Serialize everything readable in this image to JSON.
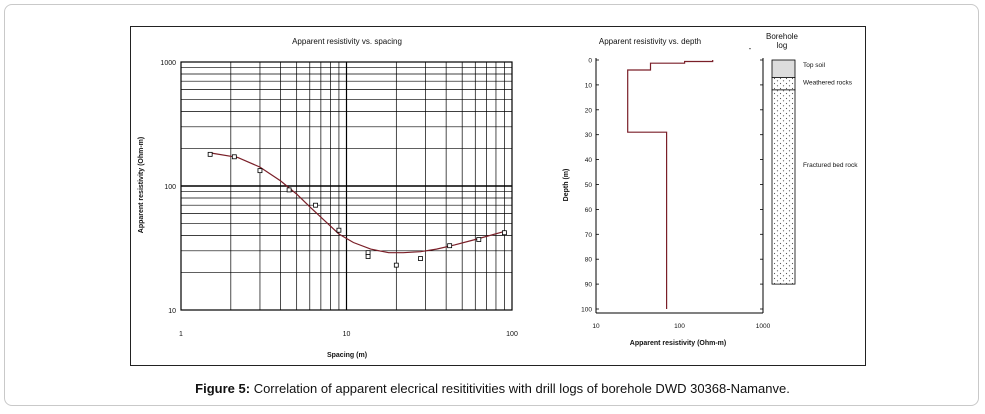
{
  "caption": {
    "label": "Figure 5:",
    "text": "Correlation of apparent elecrical resititivities with drill logs of borehole  DWD 30368-Namanve."
  },
  "chart_data": [
    {
      "type": "scatter",
      "title": "Apparent resistivity vs. spacing",
      "xlabel": "Spacing (m)",
      "ylabel": "Apparent resistivity (Ohm-m)",
      "xscale": "log",
      "yscale": "log",
      "xlim": [
        1,
        100
      ],
      "ylim": [
        10,
        1000
      ],
      "xticks": [
        "1",
        "10",
        "100"
      ],
      "yticks": [
        "10",
        "100",
        "1000"
      ],
      "grid": true,
      "series": [
        {
          "kind": "points",
          "x": [
            1.5,
            2.1,
            3.0,
            4.5,
            6.5,
            9.0,
            13.5,
            13.5,
            20,
            28,
            42,
            63,
            90
          ],
          "y": [
            180,
            172,
            133,
            93,
            70,
            44,
            29,
            27,
            23,
            26,
            33,
            37,
            42
          ]
        },
        {
          "kind": "line",
          "color": "#7a1f28",
          "x": [
            1.5,
            2.2,
            3.0,
            4.0,
            5.0,
            6.0,
            7.0,
            9.0,
            11,
            14,
            18,
            22,
            28,
            35,
            45,
            60,
            90
          ],
          "y": [
            185,
            170,
            142,
            110,
            86,
            68,
            56,
            41,
            35,
            31,
            29,
            29,
            29.5,
            31,
            33.5,
            37,
            43
          ]
        }
      ]
    },
    {
      "type": "line",
      "title": "Apparent resistivity vs. depth",
      "xlabel": "Apparent resistivity (Ohm-m)",
      "ylabel": "Depth (m)",
      "xscale": "log",
      "xlim": [
        10,
        1000
      ],
      "ylim": [
        0,
        100
      ],
      "xticks": [
        "10",
        "100",
        "1000"
      ],
      "yticks": [
        "0",
        "10",
        "20",
        "30",
        "40",
        "50",
        "60",
        "70",
        "80",
        "90",
        "100"
      ],
      "series": [
        {
          "kind": "step",
          "color": "#7a1f28",
          "x": [
            250,
            250,
            115,
            115,
            45,
            45,
            24,
            24,
            70,
            70
          ],
          "y": [
            0,
            0.6,
            0.6,
            1.3,
            1.3,
            4.0,
            4.0,
            29,
            29,
            100
          ]
        }
      ]
    }
  ],
  "borehole_log": {
    "title_line1": "Borehole",
    "title_line2": "log",
    "dash": "-",
    "layers": [
      {
        "label": "Top soil",
        "top": 0,
        "bottom": 7,
        "pattern": "solid-grey"
      },
      {
        "label": "Weathered rocks",
        "top": 7,
        "bottom": 12,
        "pattern": "dotted"
      },
      {
        "label": "Fractured bed rock",
        "top": 12,
        "bottom": 90,
        "pattern": "dotted"
      }
    ]
  }
}
